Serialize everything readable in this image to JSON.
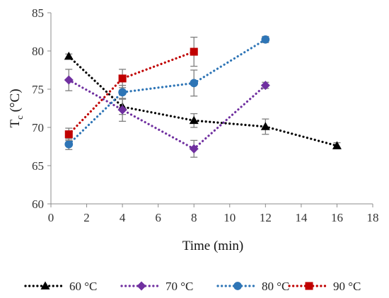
{
  "chart_data": {
    "type": "line",
    "xlabel": "Time (min)",
    "ylabel_main": "T",
    "ylabel_sub": "c",
    "ylabel_unit": " (°C)",
    "xlim": [
      0,
      18
    ],
    "ylim": [
      60,
      85
    ],
    "xticks": [
      0,
      2,
      4,
      6,
      8,
      10,
      12,
      14,
      16,
      18
    ],
    "yticks": [
      60,
      65,
      70,
      75,
      80,
      85
    ],
    "grid": false,
    "legend_position": "bottom",
    "series": [
      {
        "name": "60 °C",
        "color": "#000000",
        "marker": "triangle",
        "x": [
          1,
          4,
          8,
          12,
          16
        ],
        "y": [
          79.3,
          72.7,
          70.9,
          70.1,
          67.6
        ],
        "err": [
          0.3,
          1.0,
          0.9,
          1.0,
          0.4
        ]
      },
      {
        "name": "70 °C",
        "color": "#7030a0",
        "marker": "diamond",
        "x": [
          1,
          4,
          8,
          12
        ],
        "y": [
          76.2,
          72.3,
          67.2,
          75.5
        ],
        "err": [
          1.4,
          1.5,
          1.1,
          0.4
        ]
      },
      {
        "name": "80 °C",
        "color": "#2e75b6",
        "marker": "circle",
        "x": [
          1,
          4,
          8,
          12
        ],
        "y": [
          67.8,
          74.6,
          75.8,
          81.5
        ],
        "err": [
          0.7,
          0.9,
          1.7,
          0.4
        ]
      },
      {
        "name": "90 °C",
        "color": "#c00000",
        "marker": "square",
        "x": [
          1,
          4,
          8
        ],
        "y": [
          69.1,
          76.4,
          79.9
        ],
        "err": [
          0.8,
          1.2,
          1.9
        ]
      }
    ]
  }
}
